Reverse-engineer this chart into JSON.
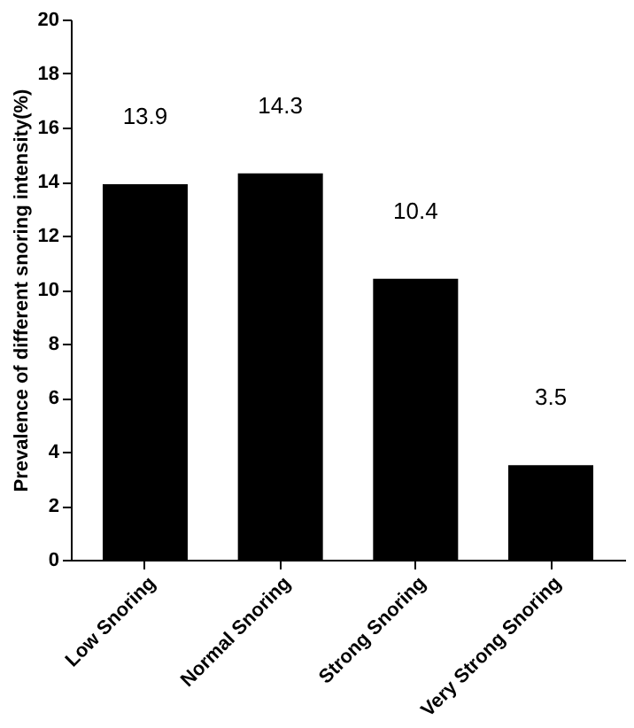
{
  "chart_data": {
    "type": "bar",
    "ylabel": "Prevalence of different snoring intensity(%)",
    "categories": [
      "Low Snoring",
      "Normal Snoring",
      "Strong Snoring",
      "Very Strong Snoring"
    ],
    "values": [
      13.9,
      14.3,
      10.4,
      3.5
    ],
    "color": "#000000",
    "ylim": [
      0,
      20
    ],
    "yticks": [
      0,
      2,
      4,
      6,
      8,
      10,
      12,
      14,
      16,
      18,
      20
    ],
    "grid": false,
    "data_labels": true
  }
}
